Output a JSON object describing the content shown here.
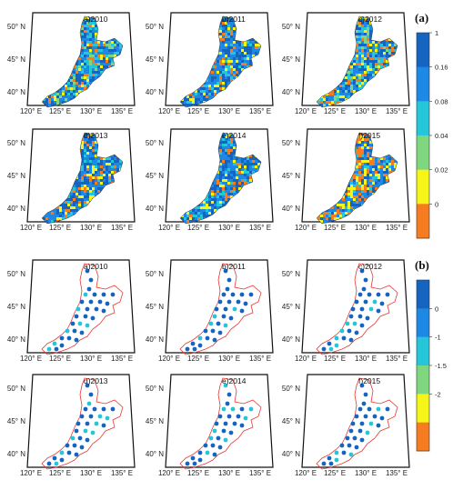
{
  "figure": {
    "part_a": {
      "letter": "(a)",
      "panels": [
        {
          "label": "a)2010",
          "palette": "mixed"
        },
        {
          "label": "b)2011",
          "palette": "blue"
        },
        {
          "label": "c)2012",
          "palette": "mixed"
        },
        {
          "label": "d)2013",
          "palette": "blue"
        },
        {
          "label": "e)2014",
          "palette": "blue"
        },
        {
          "label": "f)2015",
          "palette": "warm"
        }
      ],
      "colorbar": {
        "ticks": [
          "1",
          "0.16",
          "0.08",
          "0.04",
          "0.02",
          "0"
        ],
        "colors": [
          "#1565c0",
          "#1e88e5",
          "#26c6da",
          "#7ed67e",
          "#f5f51a",
          "#f57c20"
        ]
      }
    },
    "part_b": {
      "letter": "(b)",
      "panels": [
        {
          "label": "a)2010"
        },
        {
          "label": "b)2011"
        },
        {
          "label": "c)2012"
        },
        {
          "label": "d)2013"
        },
        {
          "label": "e)2014"
        },
        {
          "label": "f)2015"
        }
      ],
      "colorbar": {
        "ticks": [
          "0",
          "-1",
          "-1.5",
          "-2"
        ],
        "colors": [
          "#1565c0",
          "#1e88e5",
          "#26c6da",
          "#7ed67e",
          "#f5f51a",
          "#f57c20"
        ]
      }
    },
    "axes": {
      "lat_labels": [
        "50° N",
        "45° N",
        "40° N"
      ],
      "lon_labels": [
        "120° E",
        "125° E",
        "130° E",
        "135° E"
      ]
    }
  }
}
